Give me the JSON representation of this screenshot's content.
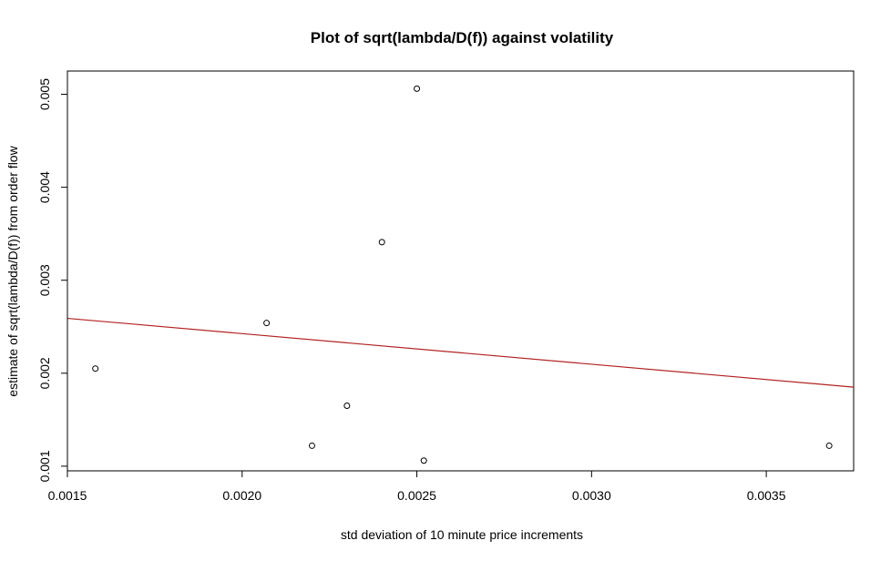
{
  "chart_data": {
    "type": "scatter",
    "title": "Plot of sqrt(lambda/D(f)) against volatility",
    "xlabel": "std deviation of 10 minute price increments",
    "ylabel": "estimate of sqrt(lambda/D(f)) from order flow",
    "xlim": [
      0.0015,
      0.00375
    ],
    "ylim": [
      0.00095,
      0.00525
    ],
    "x_ticks": [
      0.0015,
      0.002,
      0.0025,
      0.003,
      0.0035
    ],
    "x_tick_labels": [
      "0.0015",
      "0.0020",
      "0.0025",
      "0.0030",
      "0.0035"
    ],
    "y_ticks": [
      0.001,
      0.002,
      0.003,
      0.004,
      0.005
    ],
    "y_tick_labels": [
      "0.001",
      "0.002",
      "0.003",
      "0.004",
      "0.005"
    ],
    "grid": false,
    "points": {
      "x": [
        0.00158,
        0.00207,
        0.0022,
        0.0023,
        0.0024,
        0.0025,
        0.00252,
        0.00368
      ],
      "y": [
        0.00205,
        0.00254,
        0.00122,
        0.00165,
        0.00341,
        0.00506,
        0.00106,
        0.00122
      ]
    },
    "fit_line": {
      "x": [
        0.0015,
        0.00375
      ],
      "y": [
        0.00259,
        0.00185
      ],
      "color": "#b22222"
    },
    "point_color": "#000000"
  }
}
